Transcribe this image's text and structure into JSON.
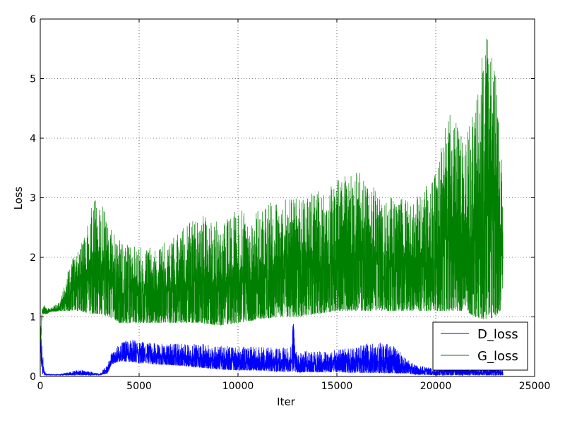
{
  "chart_data": {
    "type": "line",
    "title": "",
    "xlabel": "Iter",
    "ylabel": "Loss",
    "xlim": [
      0,
      25000
    ],
    "ylim": [
      0,
      6
    ],
    "xticks": [
      0,
      5000,
      10000,
      15000,
      20000,
      25000
    ],
    "yticks": [
      0,
      1,
      2,
      3,
      4,
      5,
      6
    ],
    "xtick_labels": [
      "0",
      "5000",
      "10000",
      "15000",
      "20000",
      "25000"
    ],
    "ytick_labels": [
      "0",
      "1",
      "2",
      "3",
      "4",
      "5",
      "6"
    ],
    "grid": true,
    "legend_position": "bottom-right",
    "series": [
      {
        "name": "D_loss",
        "color": "#0000ff",
        "x": [
          0,
          100,
          200,
          300,
          500,
          1000,
          2000,
          3000,
          3400,
          3600,
          4000,
          4500,
          5000,
          6000,
          7000,
          8000,
          9000,
          10000,
          11000,
          12000,
          12700,
          12800,
          12900,
          13000,
          14000,
          15000,
          16000,
          17000,
          18000,
          18500,
          19000,
          20000,
          21000,
          22000,
          23000,
          23400
        ],
        "upper": [
          0.85,
          0.55,
          0.1,
          0.05,
          0.04,
          0.04,
          0.12,
          0.05,
          0.2,
          0.4,
          0.55,
          0.62,
          0.6,
          0.55,
          0.55,
          0.55,
          0.52,
          0.5,
          0.5,
          0.48,
          0.5,
          1.05,
          0.5,
          0.45,
          0.42,
          0.45,
          0.5,
          0.6,
          0.5,
          0.3,
          0.2,
          0.15,
          0.2,
          0.15,
          0.15,
          0.12
        ],
        "lower": [
          0.3,
          0.05,
          0.02,
          0.02,
          0.02,
          0.02,
          0.02,
          0.02,
          0.05,
          0.2,
          0.25,
          0.25,
          0.22,
          0.2,
          0.18,
          0.15,
          0.12,
          0.1,
          0.1,
          0.08,
          0.08,
          0.08,
          0.08,
          0.07,
          0.07,
          0.07,
          0.06,
          0.06,
          0.05,
          0.05,
          0.03,
          0.02,
          0.02,
          0.02,
          0.02,
          0.02
        ]
      },
      {
        "name": "G_loss",
        "color": "#008000",
        "x": [
          0,
          100,
          200,
          300,
          500,
          1000,
          1500,
          2000,
          2500,
          3000,
          3500,
          4000,
          4500,
          5000,
          6000,
          7000,
          8000,
          9000,
          10000,
          11000,
          12000,
          13000,
          14000,
          15000,
          16000,
          17000,
          18000,
          19000,
          20000,
          20500,
          21000,
          21500,
          22000,
          22500,
          23000,
          23400
        ],
        "upper": [
          0.8,
          1.15,
          1.2,
          1.15,
          1.15,
          1.25,
          1.9,
          2.2,
          2.8,
          3.1,
          2.5,
          2.3,
          2.2,
          2.2,
          2.2,
          2.4,
          2.8,
          2.6,
          2.8,
          2.8,
          3.0,
          3.0,
          3.1,
          3.3,
          3.5,
          3.3,
          3.0,
          3.0,
          3.5,
          4.5,
          4.3,
          4.0,
          4.6,
          5.8,
          5.5,
          3.5
        ],
        "lower": [
          0.3,
          1.05,
          1.05,
          1.05,
          1.08,
          1.1,
          1.1,
          1.1,
          1.05,
          1.05,
          1.0,
          0.9,
          0.9,
          0.9,
          0.9,
          0.9,
          0.9,
          0.85,
          0.9,
          0.95,
          1.0,
          1.0,
          1.05,
          1.1,
          1.1,
          1.1,
          1.1,
          1.1,
          1.1,
          1.1,
          1.1,
          1.1,
          1.0,
          0.95,
          1.0,
          1.15
        ]
      }
    ]
  }
}
